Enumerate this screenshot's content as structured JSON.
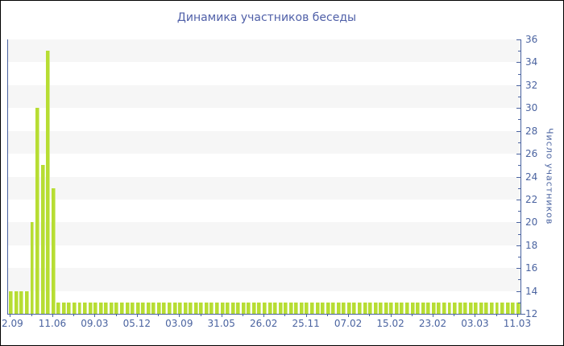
{
  "title": "Динамика участников беседы",
  "colors": {
    "title_text": "#5060a8",
    "axis": "#4a63a0",
    "tick_label": "#4a63a0",
    "bar_fill": "#b7dd33",
    "bar_edge": "#d4ed8a",
    "band_gray": "#f6f6f6",
    "band_white": "#ffffff",
    "frame_border": "#000000"
  },
  "chart_data": {
    "type": "bar",
    "title": "Динамика участников беседы",
    "xlabel": "",
    "ylabel": "Число участников",
    "ylim": [
      12,
      36
    ],
    "y_major_tick_step": 2,
    "y_minor_tick_step": 1,
    "y_tick_labels": [
      36,
      34,
      32,
      30,
      28,
      26,
      24,
      22,
      20,
      18,
      16,
      14,
      12
    ],
    "grid": "alternating horizontal bands every 2 units, gray on even bands",
    "legend": false,
    "y_axis_side": "right",
    "x_tick_labels": [
      "2.09",
      "11.06",
      "09.03",
      "05.12",
      "03.09",
      "31.05",
      "26.02",
      "25.11",
      "07.02",
      "15.02",
      "23.02",
      "03.03",
      "11.03"
    ],
    "x_tick_every_n_bars": 8,
    "values": [
      14,
      14,
      14,
      14,
      20,
      30,
      25,
      35,
      23,
      13,
      13,
      13,
      13,
      13,
      13,
      13,
      13,
      13,
      13,
      13,
      13,
      13,
      13,
      13,
      13,
      13,
      13,
      13,
      13,
      13,
      13,
      13,
      13,
      13,
      13,
      13,
      13,
      13,
      13,
      13,
      13,
      13,
      13,
      13,
      13,
      13,
      13,
      13,
      13,
      13,
      13,
      13,
      13,
      13,
      13,
      13,
      13,
      13,
      13,
      13,
      13,
      13,
      13,
      13,
      13,
      13,
      13,
      13,
      13,
      13,
      13,
      13,
      13,
      13,
      13,
      13,
      13,
      13,
      13,
      13,
      13,
      13,
      13,
      13,
      13,
      13,
      13,
      13,
      13,
      13,
      13,
      13,
      13,
      13,
      13,
      13,
      13
    ]
  }
}
